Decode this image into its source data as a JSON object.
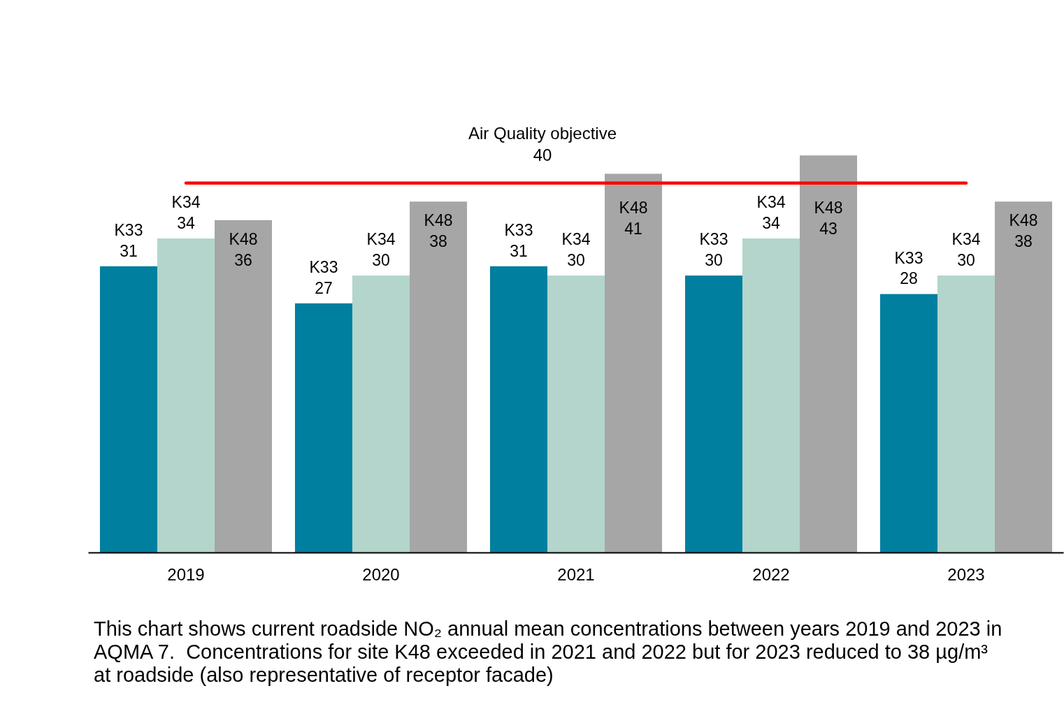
{
  "chart_data": {
    "type": "bar",
    "categories": [
      "2019",
      "2020",
      "2021",
      "2022",
      "2023"
    ],
    "series": [
      {
        "name": "K33",
        "color": "#007f9f",
        "values": [
          31,
          27,
          31,
          30,
          28
        ]
      },
      {
        "name": "K34",
        "color": "#b3d5cb",
        "values": [
          34,
          30,
          30,
          34,
          30
        ]
      },
      {
        "name": "K48",
        "color": "#a6a6a6",
        "values": [
          36,
          38,
          41,
          43,
          38
        ]
      }
    ],
    "data_labels": true,
    "ref_lines": [
      {
        "axis": "y",
        "value": 40,
        "label": "Air Quality objective\n40",
        "color": "#ff0000"
      }
    ],
    "annotations": [
      "This chart shows current roadside NO₂ annual mean concentrations between years 2019 and 2023 in\nAQMA 7.  Concentrations for site K48 exceeded in 2021 and 2022 but for 2023 reduced to 38 µg/m³\nat roadside (also representative of receptor facade)"
    ]
  }
}
